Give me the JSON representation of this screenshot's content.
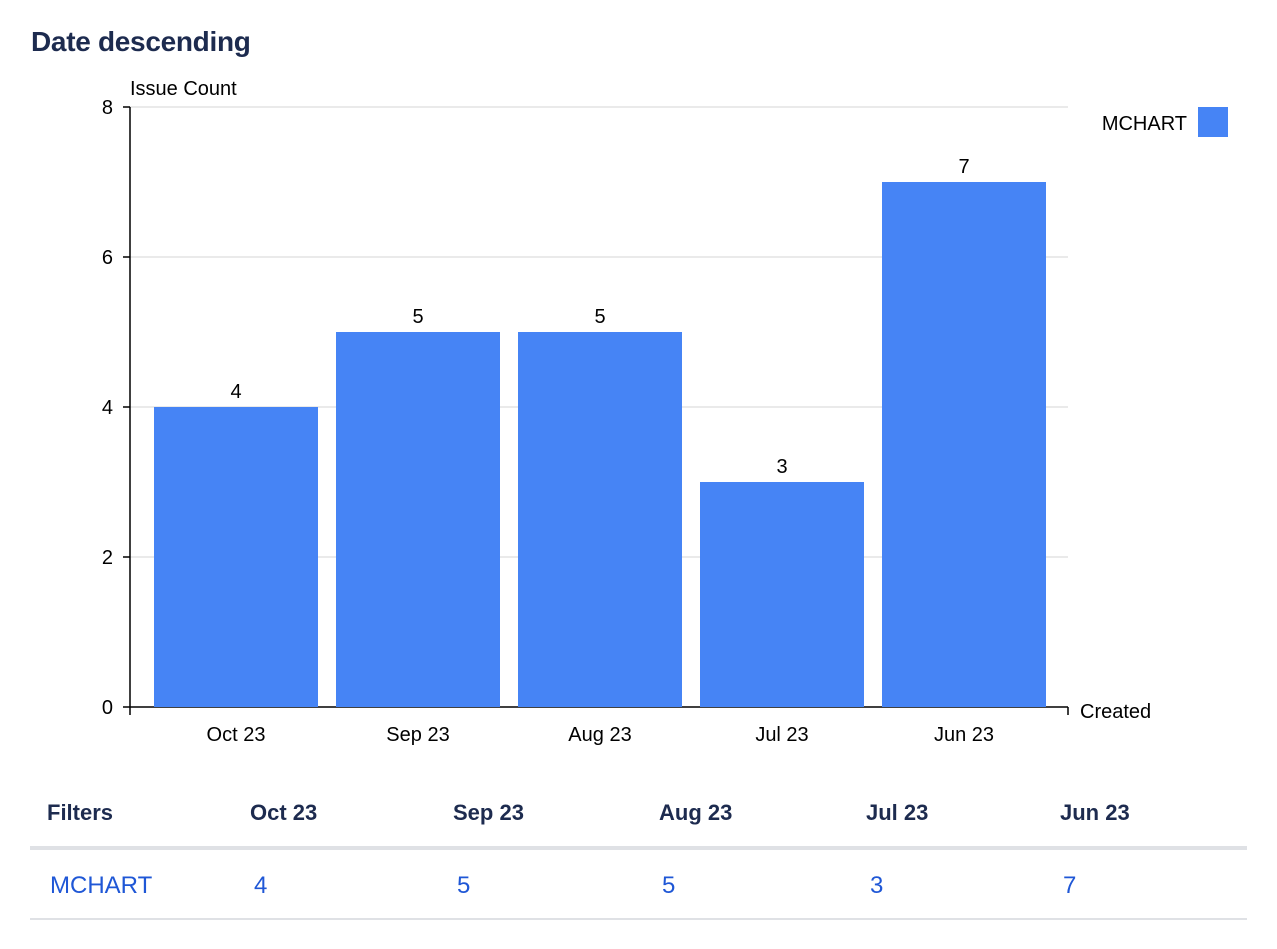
{
  "title": "Date descending",
  "chart_data": {
    "type": "bar",
    "title": "Date descending",
    "ylabel": "Issue Count",
    "xlabel": "Created",
    "categories": [
      "Oct 23",
      "Sep 23",
      "Aug 23",
      "Jul 23",
      "Jun 23"
    ],
    "series": [
      {
        "name": "MCHART",
        "values": [
          4,
          5,
          5,
          3,
          7
        ],
        "color": "#4684f5"
      }
    ],
    "ylim": [
      0,
      8
    ],
    "yticks": [
      0,
      2,
      4,
      6,
      8
    ],
    "grid": true,
    "legend": "top-right"
  },
  "table": {
    "headers": [
      "Filters",
      "Oct 23",
      "Sep 23",
      "Aug 23",
      "Jul 23",
      "Jun 23"
    ],
    "rows": [
      {
        "filter": "MCHART",
        "values": [
          "4",
          "5",
          "5",
          "3",
          "7"
        ]
      }
    ]
  }
}
